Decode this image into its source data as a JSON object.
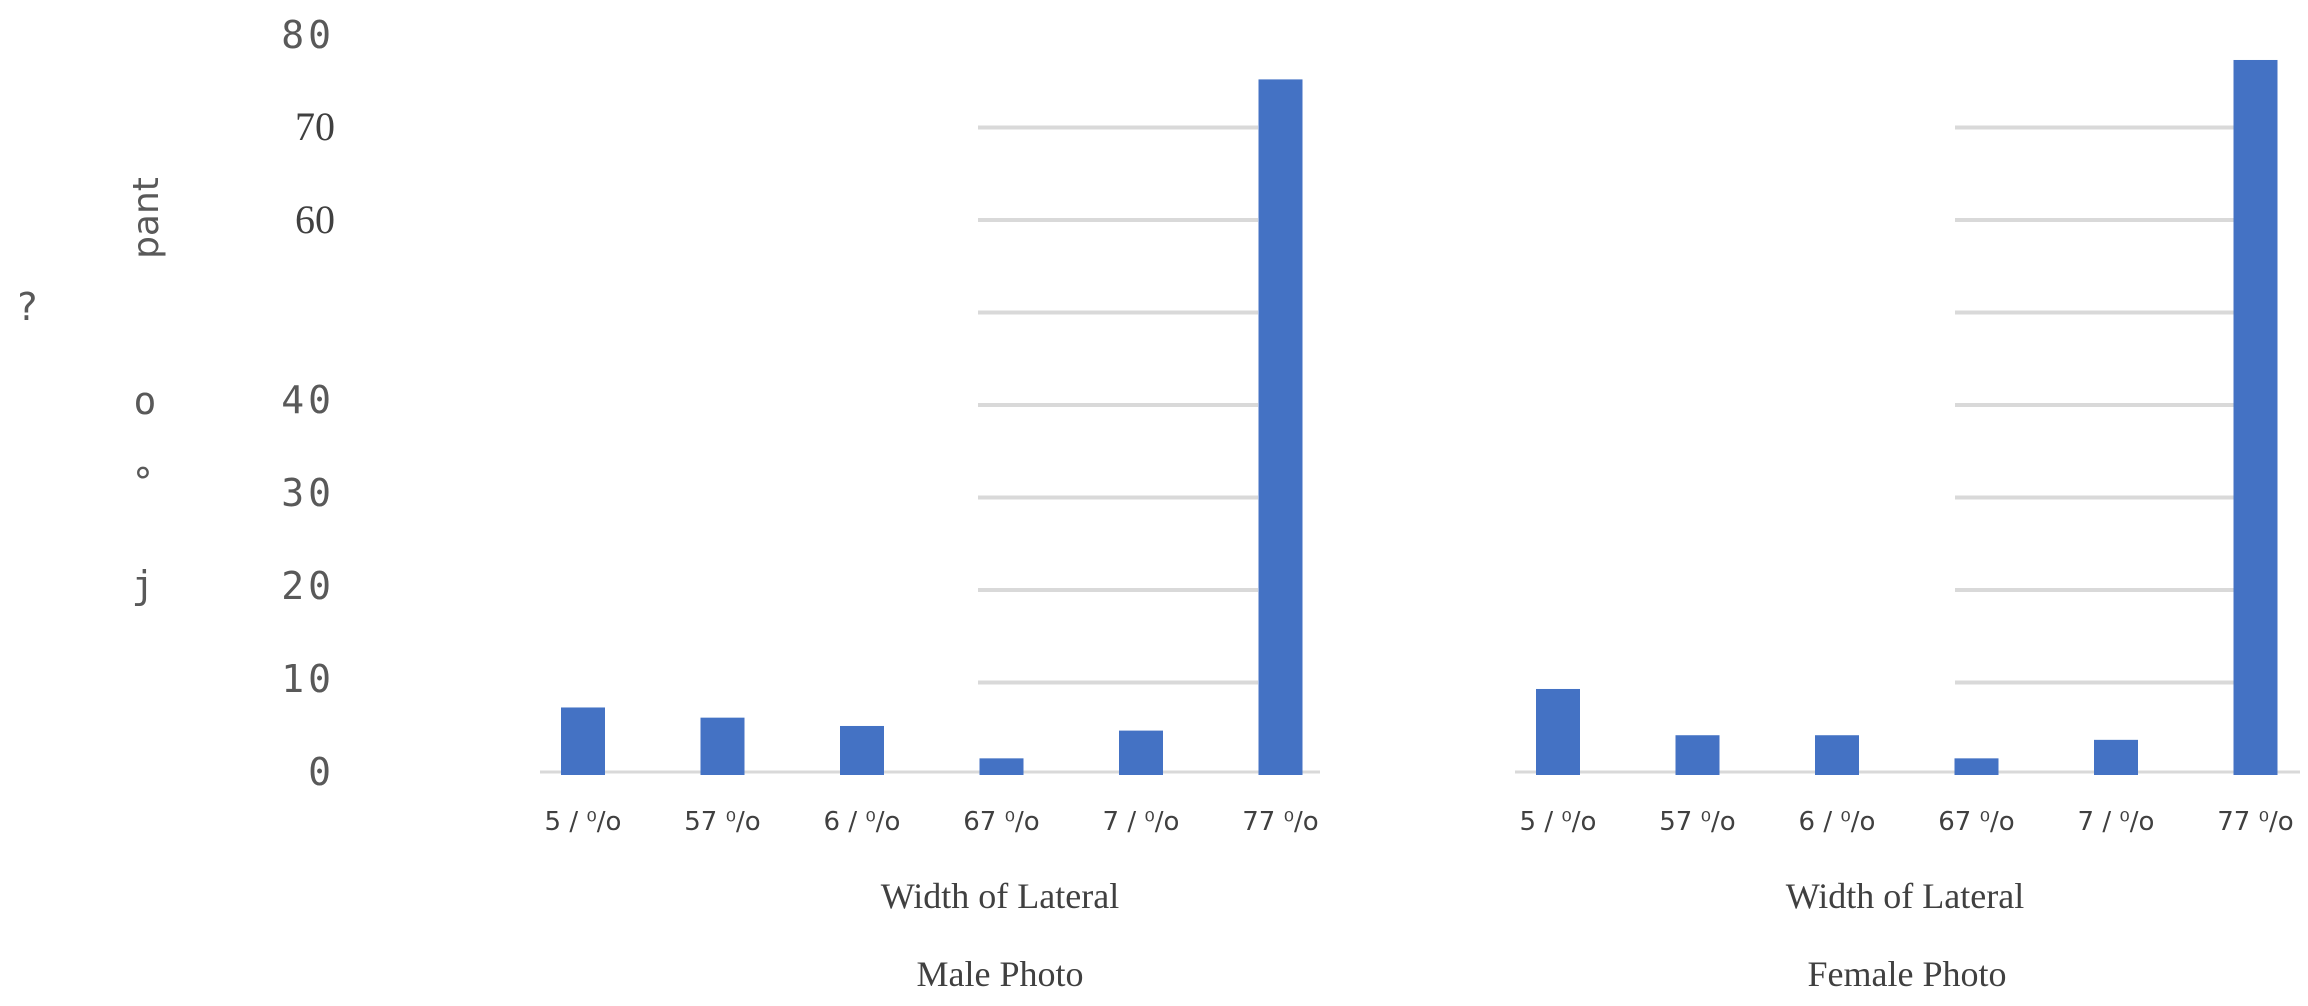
{
  "chart_data": [
    {
      "type": "bar",
      "title": "Male Photo",
      "xlabel": "Width of Lateral",
      "categories": [
        "5 / ⁰/o",
        "57 ⁰/o",
        "6 / ⁰/o",
        "67 ⁰/o",
        "7 / ⁰/o",
        "77 ⁰/o"
      ],
      "values": [
        7.3,
        6.2,
        5.3,
        1.8,
        4.8,
        75.2
      ],
      "ylim": [
        0,
        80
      ],
      "color": "#4472c4",
      "grid": true
    },
    {
      "type": "bar",
      "title": "Female Photo",
      "xlabel": "Width  of Lateral",
      "categories": [
        "5 / ⁰/o",
        "57 ⁰/o",
        "6 / ⁰/o",
        "67 ⁰/o",
        "7 / ⁰/o",
        "77 ⁰/o"
      ],
      "values": [
        9.3,
        4.3,
        4.3,
        1.8,
        3.8,
        77.3
      ],
      "ylim": [
        0,
        80
      ],
      "color": "#4472c4",
      "grid": true
    }
  ],
  "y_axis": {
    "ticks": [
      "80",
      "70",
      "60",
      "40",
      "30",
      "20",
      "10",
      "0"
    ],
    "label_parts": [
      "pant",
      "?",
      "o",
      "°",
      "j"
    ]
  }
}
